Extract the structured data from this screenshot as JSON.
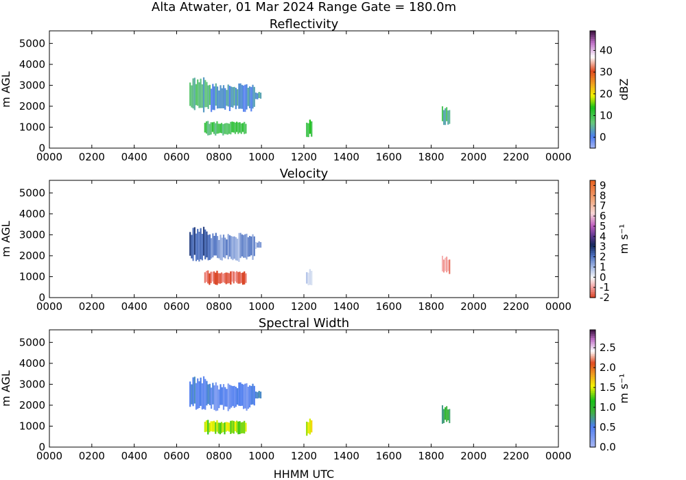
{
  "suptitle": "Alta Atwater, 01 Mar 2024 Range Gate = 180.0m",
  "xlabel": "HHMM UTC",
  "chart_data": [
    {
      "type": "heatmap",
      "title": "Reflectivity",
      "ylabel": "m AGL",
      "xlabel": "HHMM UTC",
      "x_ticks": [
        "0000",
        "0200",
        "0400",
        "0600",
        "0800",
        "1000",
        "1200",
        "1400",
        "1600",
        "1800",
        "2000",
        "2200",
        "0000"
      ],
      "x_range_hours": [
        0,
        24
      ],
      "y_ticks": [
        0,
        1000,
        2000,
        3000,
        4000,
        5000
      ],
      "ylim": [
        0,
        5600
      ],
      "colorbar": {
        "label": "dBZ",
        "ticks": [
          "0",
          "10",
          "20",
          "30",
          "40"
        ],
        "range": [
          -5,
          49
        ]
      },
      "echoes": [
        {
          "t0": 6.6,
          "t1": 7.6,
          "z0": 1700,
          "z1": 3400,
          "value": 6
        },
        {
          "t0": 7.6,
          "t1": 9.7,
          "z0": 1700,
          "z1": 3100,
          "value": 2
        },
        {
          "t0": 9.7,
          "t1": 10.0,
          "z0": 2300,
          "z1": 2700,
          "value": 3
        },
        {
          "t0": 7.3,
          "t1": 9.3,
          "z0": 600,
          "z1": 1300,
          "value": 9
        },
        {
          "t0": 12.1,
          "t1": 12.4,
          "z0": 500,
          "z1": 1400,
          "value": 12
        },
        {
          "t0": 18.5,
          "t1": 18.9,
          "z0": 1100,
          "z1": 2000,
          "value": 7
        }
      ]
    },
    {
      "type": "heatmap",
      "title": "Velocity",
      "ylabel": "m AGL",
      "xlabel": "HHMM UTC",
      "x_ticks": [
        "0000",
        "0200",
        "0400",
        "0600",
        "0800",
        "1000",
        "1200",
        "1400",
        "1600",
        "1800",
        "2000",
        "2200",
        "0000"
      ],
      "x_range_hours": [
        0,
        24
      ],
      "y_ticks": [
        0,
        1000,
        2000,
        3000,
        4000,
        5000
      ],
      "ylim": [
        0,
        5600
      ],
      "colorbar": {
        "label": "m s⁻¹",
        "ticks": [
          "-2",
          "-1",
          "0",
          "1",
          "2",
          "3",
          "4",
          "5",
          "6",
          "7",
          "8",
          "9"
        ],
        "range": [
          -2,
          9.5
        ]
      },
      "echoes": [
        {
          "t0": 6.6,
          "t1": 7.6,
          "z0": 1700,
          "z1": 3400,
          "value": 2.5
        },
        {
          "t0": 7.6,
          "t1": 9.7,
          "z0": 1700,
          "z1": 3100,
          "value": 1.5
        },
        {
          "t0": 9.7,
          "t1": 10.0,
          "z0": 2300,
          "z1": 2700,
          "value": 1.0
        },
        {
          "t0": 7.3,
          "t1": 9.3,
          "z0": 600,
          "z1": 1300,
          "value": -1.5
        },
        {
          "t0": 12.1,
          "t1": 12.4,
          "z0": 500,
          "z1": 1400,
          "value": 0.5
        },
        {
          "t0": 18.5,
          "t1": 18.9,
          "z0": 1100,
          "z1": 2000,
          "value": -1.0
        }
      ]
    },
    {
      "type": "heatmap",
      "title": "Spectral Width",
      "ylabel": "m AGL",
      "xlabel": "HHMM UTC",
      "x_ticks": [
        "0000",
        "0200",
        "0400",
        "0600",
        "0800",
        "1000",
        "1200",
        "1400",
        "1600",
        "1800",
        "2000",
        "2200",
        "0000"
      ],
      "x_range_hours": [
        0,
        24
      ],
      "y_ticks": [
        0,
        1000,
        2000,
        3000,
        4000,
        5000
      ],
      "ylim": [
        0,
        5600
      ],
      "colorbar": {
        "label": "m s⁻¹",
        "ticks": [
          "0.0",
          "0.5",
          "1.0",
          "1.5",
          "2.0",
          "2.5"
        ],
        "range": [
          0,
          2.95
        ]
      },
      "echoes": [
        {
          "t0": 6.6,
          "t1": 7.6,
          "z0": 1700,
          "z1": 3400,
          "value": 0.5
        },
        {
          "t0": 7.6,
          "t1": 9.7,
          "z0": 1700,
          "z1": 3100,
          "value": 0.4
        },
        {
          "t0": 9.7,
          "t1": 10.0,
          "z0": 2300,
          "z1": 2700,
          "value": 0.7
        },
        {
          "t0": 7.3,
          "t1": 9.3,
          "z0": 600,
          "z1": 1300,
          "value": 1.4
        },
        {
          "t0": 12.1,
          "t1": 12.4,
          "z0": 500,
          "z1": 1400,
          "value": 1.5
        },
        {
          "t0": 18.5,
          "t1": 18.9,
          "z0": 1100,
          "z1": 2000,
          "value": 0.9
        }
      ]
    }
  ]
}
